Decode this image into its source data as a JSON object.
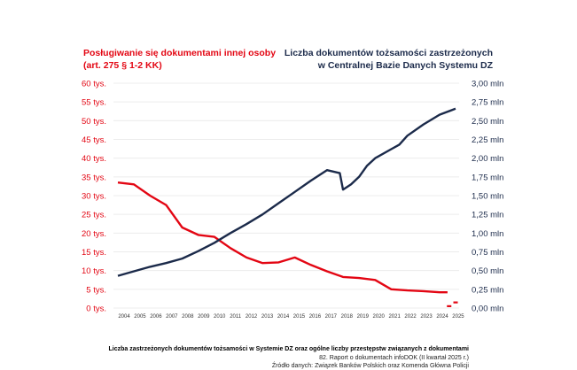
{
  "chart_data": {
    "type": "line",
    "title_left": "Posługiwanie się dokumentami innej osoby",
    "title_left_2": "(art. 275 § 1-2 KK)",
    "title_right": "Liczba dokumentów tożsamości zastrzeżonych",
    "title_right_2": "w Centralnej Bazie Danych Systemu DZ",
    "caption": "Liczba zastrzeżonych dokumentów tożsamości w Systemie DZ oraz ogólne liczby przestępstw związanych z dokumentami",
    "report": "82. Raport o dokumentach infoDOK (II kwartał 2025 r.)",
    "source": "Źródło danych: Związek Banków Polskich oraz Komenda Główna Policji",
    "x_ticks": [
      "2004",
      "2005",
      "2006",
      "2007",
      "2008",
      "2009",
      "2010",
      "2011",
      "2012",
      "2013",
      "2014",
      "2015",
      "2016",
      "2017",
      "2018",
      "2019",
      "2020",
      "2021",
      "2022",
      "2023",
      "2024",
      "2025"
    ],
    "xlim": [
      2004,
      2025
    ],
    "y_left_ticks": [
      "0 tys.",
      "5 tys.",
      "10 tys.",
      "15 tys.",
      "20 tys.",
      "25 tys.",
      "30 tys.",
      "35 tys.",
      "40 tys.",
      "45 tys.",
      "50 tys.",
      "55 tys.",
      "60 tys."
    ],
    "y_left_lim": [
      0,
      60
    ],
    "y_right_ticks": [
      "0,00 mln",
      "0,25 mln",
      "0,50 mln",
      "0,75 mln",
      "1,00 mln",
      "1,25 mln",
      "1,50 mln",
      "1,75 mln",
      "2,00 mln",
      "2,25 mln",
      "2,50 mln",
      "2,75 mln",
      "3,00 mln"
    ],
    "y_right_lim": [
      0,
      3
    ],
    "grid": true,
    "colors": {
      "left": "#e30613",
      "right": "#1b2a4a"
    },
    "series": [
      {
        "name": "Posługiwanie się dokumentami innej osoby (tys.)",
        "axis": "left",
        "x": [
          2004,
          2005,
          2006,
          2007,
          2008,
          2009,
          2010,
          2011,
          2012,
          2013,
          2014,
          2015,
          2016,
          2017,
          2018,
          2019,
          2020,
          2021,
          2022,
          2023,
          2024,
          2024.5
        ],
        "y": [
          33.5,
          33,
          30,
          27.5,
          21.5,
          19.5,
          19,
          16,
          13.5,
          12,
          12.2,
          13.5,
          11.5,
          9.8,
          8.3,
          8,
          7.5,
          5,
          4.7,
          4.5,
          4.2,
          4.2
        ]
      },
      {
        "name": "Posługiwanie się dokumentami innej osoby – 2025 (tys.)",
        "axis": "left",
        "style": "dashes",
        "x": [
          2024.6,
          2025
        ],
        "y": [
          0.5,
          1.5
        ]
      },
      {
        "name": "Liczba dokumentów tożsamości zastrzeżonych (mln)",
        "axis": "right",
        "x": [
          2004,
          2005,
          2006,
          2007,
          2008,
          2009,
          2010,
          2011,
          2012,
          2013,
          2014,
          2015,
          2016,
          2017,
          2017.8,
          2018,
          2018.5,
          2019,
          2019.5,
          2020,
          2021,
          2021.5,
          2022,
          2023,
          2024,
          2025
        ],
        "y": [
          0.43,
          0.49,
          0.55,
          0.6,
          0.66,
          0.76,
          0.87,
          1.0,
          1.12,
          1.25,
          1.4,
          1.55,
          1.7,
          1.84,
          1.8,
          1.58,
          1.65,
          1.75,
          1.9,
          2.0,
          2.12,
          2.18,
          2.3,
          2.45,
          2.58,
          2.66
        ]
      }
    ]
  }
}
